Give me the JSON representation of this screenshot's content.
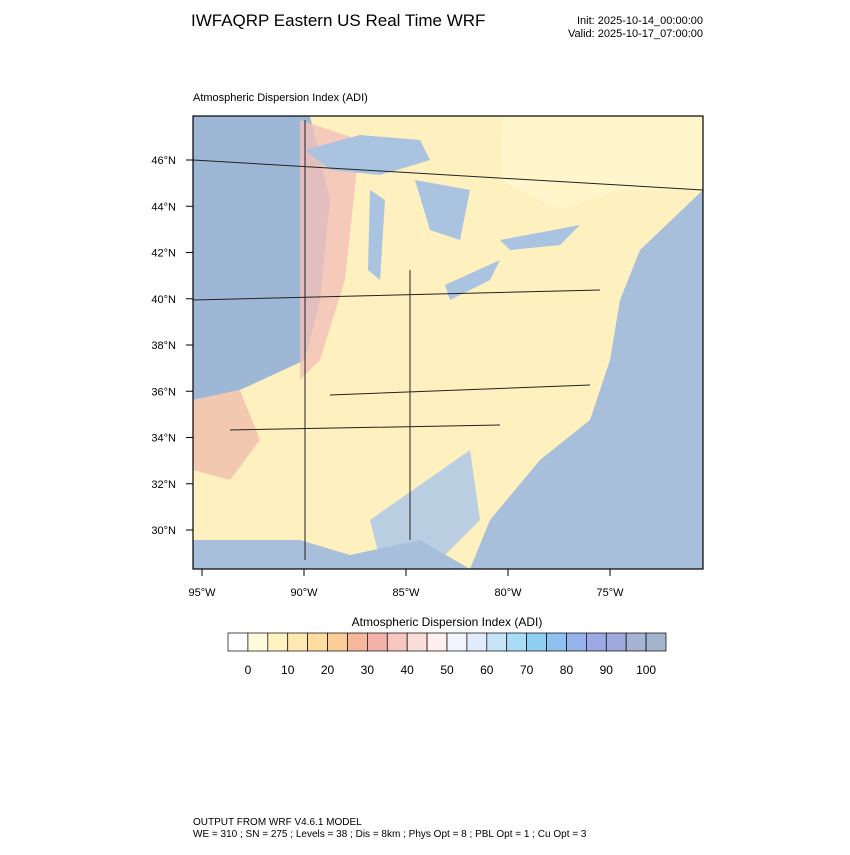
{
  "header": {
    "title": "IWFAQRP Eastern US Real Time WRF",
    "init": "Init: 2025-10-14_00:00:00",
    "valid": "Valid: 2025-10-17_07:00:00"
  },
  "map": {
    "label": "Atmospheric Dispersion Index   (ADI)",
    "lat_labels": [
      "46°N",
      "44°N",
      "42°N",
      "40°N",
      "38°N",
      "36°N",
      "34°N",
      "32°N",
      "30°N"
    ],
    "lon_labels": [
      "95°W",
      "90°W",
      "85°W",
      "80°W",
      "75°W"
    ]
  },
  "colorbar": {
    "title": "Atmospheric Dispersion Index  (ADI)",
    "labels": [
      0,
      10,
      20,
      30,
      40,
      50,
      60,
      70,
      80,
      90,
      100
    ],
    "colors": [
      "#ffffff",
      "#fffbdc",
      "#fff3c4",
      "#ffe9b0",
      "#ffdca0",
      "#fccd95",
      "#f7b79a",
      "#f3b3aa",
      "#f6c6c0",
      "#fadcd8",
      "#fdf0ef",
      "#f4f4ff",
      "#e0ecfb",
      "#c7e4f8",
      "#a9dcf6",
      "#8ed0f2",
      "#8fc1ee",
      "#95b3ea",
      "#9ca9e4",
      "#a0a9dc",
      "#a6b3d2",
      "#a3b5cc"
    ]
  },
  "footer": {
    "line1": "OUTPUT FROM WRF V4.6.1 MODEL",
    "line2": "WE = 310 ; SN = 275 ; Levels = 38 ; Dis = 8km ; Phys Opt = 8 ; PBL Opt = 1 ; Cu Opt = 3"
  }
}
